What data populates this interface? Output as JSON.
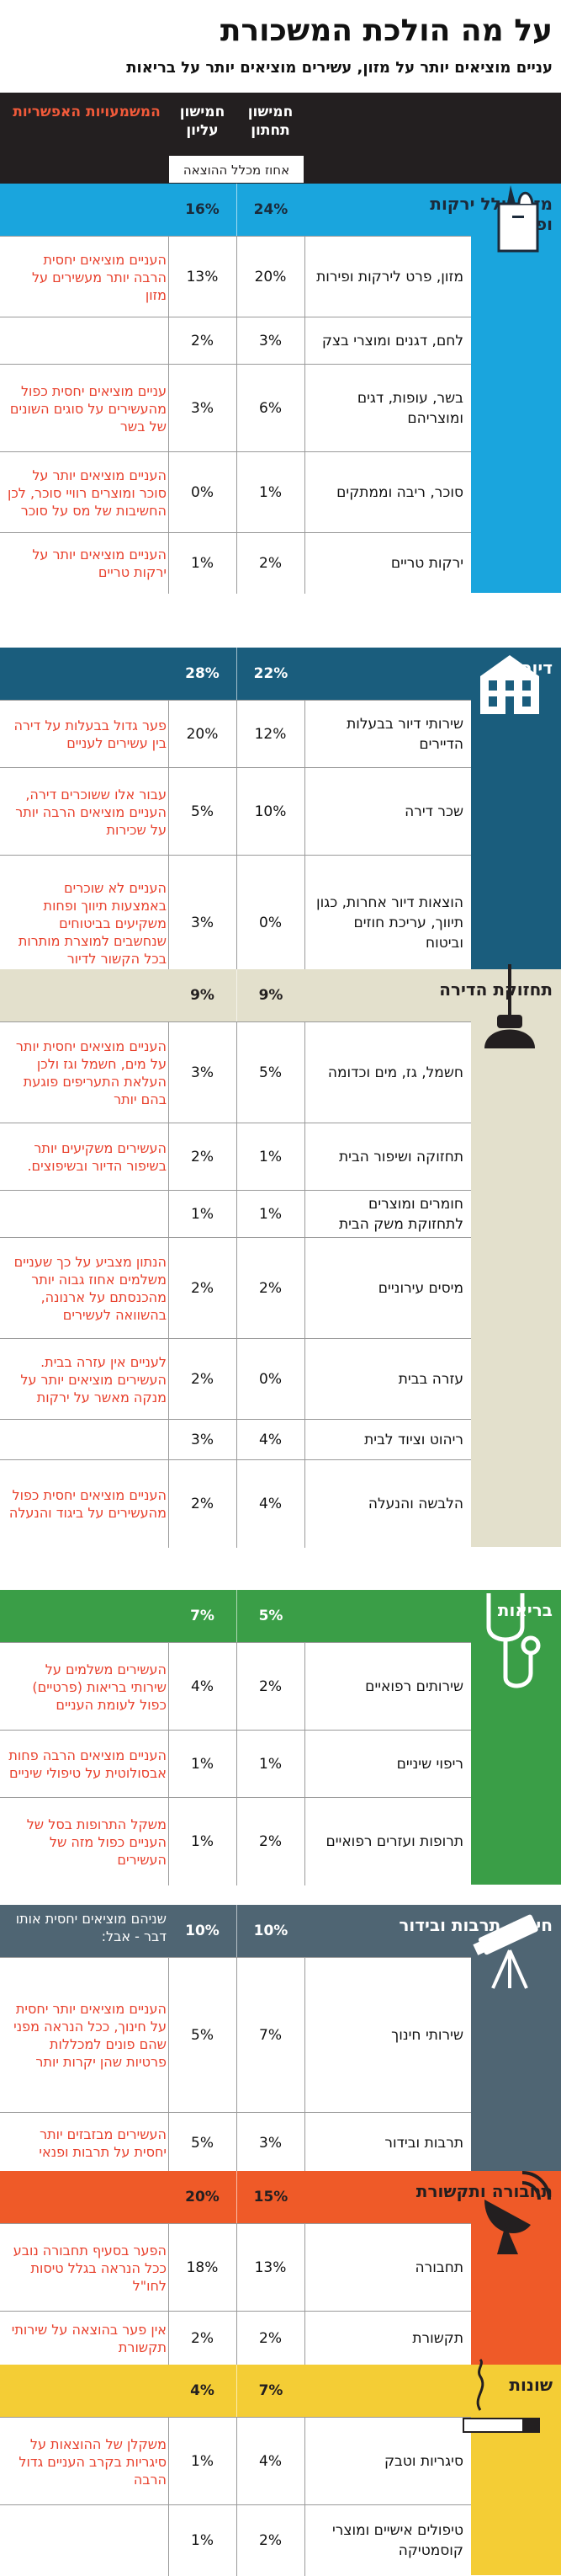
{
  "header": {
    "title": "על מה הולכת המשכורת",
    "subtitle": "עניים מוציאים יותר על מזון, עשירים מוציאים יותר על בריאות"
  },
  "columns": {
    "bottom": "חמישון תחתון",
    "top": "חמישון עליון",
    "reasons": "המשמעויות האפשריות",
    "unit": "אחוז מכלל ההוצאה"
  },
  "colors": {
    "food": "#1aa5dd",
    "housing": "#1a5d7d",
    "maintenance": "#e3e0cc",
    "health": "#3a9e47",
    "education": "#4f6573",
    "transport": "#ef5a28",
    "misc": "#f4cd35",
    "note": "#e8402c"
  },
  "sections": [
    {
      "name": "מזון כולל ירקות ופירות",
      "bottom": "24%",
      "top": "16%",
      "icon": "grocery-bag-icon",
      "rows": [
        {
          "label": "מזון, פרט לירקות ופירות",
          "bottom": "20%",
          "top": "13%",
          "note": "העניים מוציאים יחסית הרבה יותר מעשירים על מזון"
        },
        {
          "label": "לחם, דגנים ומוצרי בצק",
          "bottom": "3%",
          "top": "2%",
          "note": ""
        },
        {
          "label": "בשר, עופות, דגים ומוצריהם",
          "bottom": "6%",
          "top": "3%",
          "note": "עניים מוציאים יחסית כפול מהעשירים על סוגים השונים של בשר"
        },
        {
          "label": "סוכר, ריבה וממתקים",
          "bottom": "1%",
          "top": "0%",
          "note": "העניים מוציאים יותר על סוכר ומוצרים רוויי סוכר, לכן החשיבות של מס על סוכר"
        },
        {
          "label": "ירקות טריים",
          "bottom": "2%",
          "top": "1%",
          "note": "העניים מוציאים יותר על ירקות טריים"
        }
      ]
    },
    {
      "name": "דיור",
      "bottom": "22%",
      "top": "28%",
      "icon": "building-icon",
      "rows": [
        {
          "label": "שירותי דיור בבעלות הדיירים",
          "bottom": "12%",
          "top": "20%",
          "note": "פער גדול בבעלות על דירה בין עשירים לעניים"
        },
        {
          "label": "שכר דירה",
          "bottom": "10%",
          "top": "5%",
          "note": "עבור אלו ששוכרים דירה, העניים מוציאים הרבה יותר על שכירות"
        },
        {
          "label": "הוצאות דיור אחרות, כגון תיווך, עריכת חוזים וביטוח",
          "bottom": "0%",
          "top": "3%",
          "note": "העניים לא שוכרים באמצעות תיווך ופחות משקיעים בביטוחים שנחשבים למוצרת מותרות בכל הקשור לדיור"
        }
      ]
    },
    {
      "name": "תחזוקת הדירה",
      "bottom": "9%",
      "top": "9%",
      "icon": "lamp-icon",
      "rows": [
        {
          "label": "חשמל, גז, מים וכדומה",
          "bottom": "5%",
          "top": "3%",
          "note": "העניים מוציאים יחסית יותר על מים, חשמל וגז ולכן העלאת התעריפים פוגעת בהם יותר"
        },
        {
          "label": "תחזוקה ושיפור הבית",
          "bottom": "1%",
          "top": "2%",
          "note": "העשירים משקיעים יותר בשיפור הדיור ובשיפוצים."
        },
        {
          "label": "חומרים ומוצרים לתחזוקת משק הבית",
          "bottom": "1%",
          "top": "1%",
          "note": ""
        },
        {
          "label": "מיסים עירוניים",
          "bottom": "2%",
          "top": "2%",
          "note": "הנתון מצביע על כך שעניים משלמים אחוז גבוה יותר מהכנסתם על ארנונה, בהשוואה לעשירים"
        },
        {
          "label": "עזרה בבית",
          "bottom": "0%",
          "top": "2%",
          "note": "לעניים אין עזרה בבית. העשירים מוציאים יותר על מנקה מאשר על ירקות"
        },
        {
          "label": "ריהוט וציוד לבית",
          "bottom": "4%",
          "top": "3%",
          "note": ""
        },
        {
          "label": "הלבשה והנעלה",
          "bottom": "4%",
          "top": "2%",
          "note": "העניים מוציאים יחסית כפול מהעשירים על ביגוד והנעלה"
        }
      ]
    },
    {
      "name": "בריאות",
      "bottom": "5%",
      "top": "7%",
      "icon": "stethoscope-icon",
      "rows": [
        {
          "label": "שירותים רפואיים",
          "bottom": "2%",
          "top": "4%",
          "note": "העשירים משלמים על שירותי בריאות (פרטיים) כפול לעומת העניים"
        },
        {
          "label": "ריפוי שיניים",
          "bottom": "1%",
          "top": "1%",
          "note": "העניים מוציאים הרבה פחות אבסולוטית על טיפולי שיניים"
        },
        {
          "label": "תרופות ועזרים רפואיים",
          "bottom": "2%",
          "top": "1%",
          "note": "משקל התרופות בסל של העניים כפול מזה של העשירים"
        }
      ]
    },
    {
      "name": "חינוך, תרבות ובידור",
      "bottom": "10%",
      "top": "10%",
      "icon": "telescope-icon",
      "headNote": "שניהם מוציאים יחסית אותו דבר - אבל:",
      "rows": [
        {
          "label": "שירותי חינוך",
          "bottom": "7%",
          "top": "5%",
          "note": "העניים מוציאים יותר יחסית על חינוך, ככל הנראה מפני שהם פונים למכללות פרטיות שהן יקרות יותר"
        },
        {
          "label": "תרבות ובידור",
          "bottom": "3%",
          "top": "5%",
          "note": "העשירים מבזבזים יותר יחסית על תרבות ופנאי"
        }
      ]
    },
    {
      "name": "תחבורה ותקשורת",
      "bottom": "15%",
      "top": "20%",
      "icon": "satellite-dish-icon",
      "rows": [
        {
          "label": "תחבורה",
          "bottom": "13%",
          "top": "18%",
          "note": "הפער בסעיף תחבורה נובע ככל הנראה בגלל טיסות לחו\"ל"
        },
        {
          "label": "תקשורת",
          "bottom": "2%",
          "top": "2%",
          "note": "אין פער בהוצאה על שירותי תקשורת"
        }
      ]
    },
    {
      "name": "שונות",
      "bottom": "7%",
      "top": "4%",
      "icon": "cigarette-icon",
      "rows": [
        {
          "label": "סיגריות וטבק",
          "bottom": "4%",
          "top": "1%",
          "note": "משקלן של ההוצאות על סיגריות בקרב העניים גדול הרבה"
        },
        {
          "label": "טיפולים אישיים ומוצרי קוסמטיקה",
          "bottom": "2%",
          "top": "1%",
          "note": ""
        }
      ]
    }
  ]
}
